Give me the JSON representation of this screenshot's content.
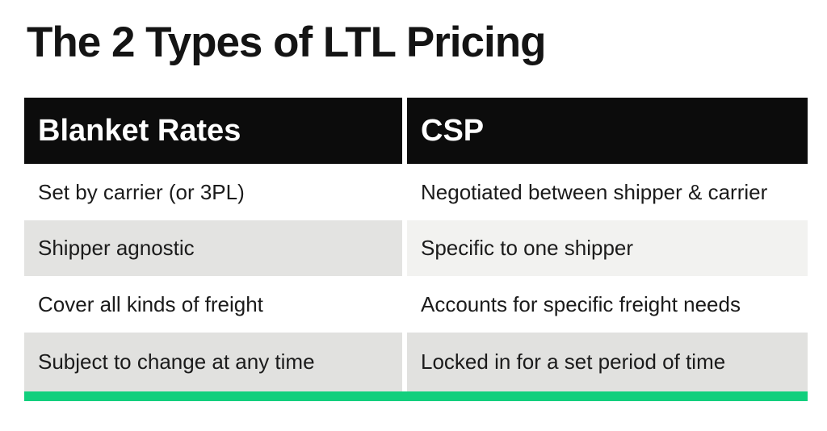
{
  "title": "The 2 Types of LTL Pricing",
  "table": {
    "headers": [
      "Blanket Rates",
      "CSP"
    ],
    "rows": [
      {
        "blanket": "Set by carrier (or 3PL)",
        "csp": "Negotiated between shipper & carrier"
      },
      {
        "blanket": "Shipper agnostic",
        "csp": "Specific to one shipper"
      },
      {
        "blanket": "Cover all kinds of freight",
        "csp": "Accounts for specific freight needs"
      },
      {
        "blanket": "Subject to change at any time",
        "csp": "Locked in for a set period of time"
      }
    ]
  },
  "colors": {
    "header_bg": "#0c0c0c",
    "header_text": "#ffffff",
    "body_text": "#1b1b1b",
    "stripe_left": "#e3e3e1",
    "stripe_right": "#f2f2f0",
    "stripe_bottom": "#e1e1df",
    "accent_green": "#12cf7d",
    "page_bg": "#ffffff"
  }
}
